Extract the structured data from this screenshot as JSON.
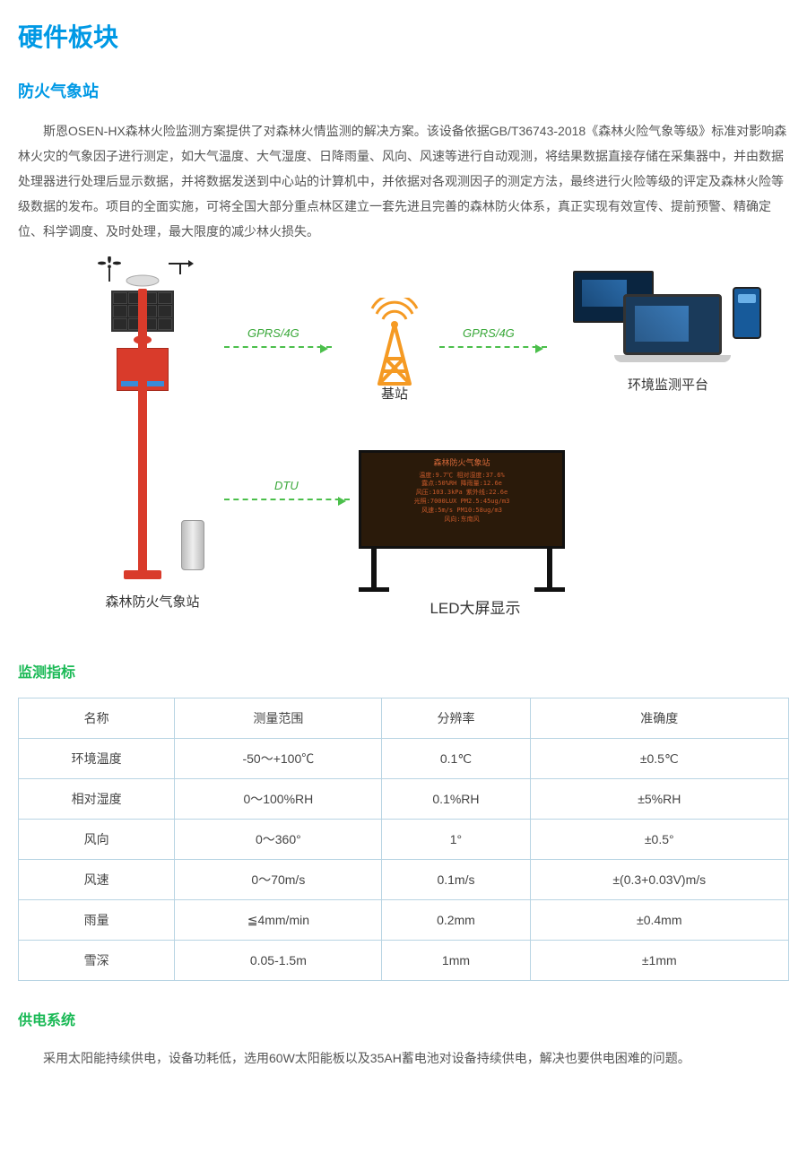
{
  "colors": {
    "primaryBlue": "#0099e5",
    "accentGreen": "#19b955",
    "arrowGreen": "#4bbf4b",
    "towerOrange": "#f59a23",
    "stationRed": "#d93b2b",
    "tableBorder": "#b8d4e3",
    "text": "#555555"
  },
  "title": "硬件板块",
  "section1": {
    "heading": "防火气象站"
  },
  "intro": "斯恩OSEN-HX森林火险监测方案提供了对森林火情监测的解决方案。该设备依据GB/T36743-2018《森林火险气象等级》标准对影响森林火灾的气象因子进行测定，如大气温度、大气湿度、日降雨量、风向、风速等进行自动观测，将结果数据直接存储在采集器中，并由数据处理器进行处理后显示数据，并将数据发送到中心站的计算机中，并依据对各观测因子的测定方法，最终进行火险等级的评定及森林火险等级数据的发布。项目的全面实施，可将全国大部分重点林区建立一套先进且完善的森林防火体系，真正实现有效宣传、提前预警、精确定位、科学调度、及时处理，最大限度的减少林火损失。",
  "diagram": {
    "stationLabel": "森林防火气象站",
    "baseStationLabel": "基站",
    "platformLabel": "环境监测平台",
    "ledLabel": "LED大屏显示",
    "link1": "GPRS/4G",
    "link2": "GPRS/4G",
    "link3": "DTU",
    "ledTitle": "森林防火气象站",
    "ledLines": [
      "温度:9.7℃      相对湿度:37.6%",
      "露点:50%RH     降雨量:12.6e",
      "风压:103.3kPa  紫外线:22.6e",
      "光照:7000LUX   PM2.5:45ug/m3",
      "风速:5m/s      PM10:58ug/m3",
      "风向:东南风"
    ]
  },
  "section2": {
    "heading": "监测指标"
  },
  "table": {
    "columns": [
      "名称",
      "测量范围",
      "分辨率",
      "准确度"
    ],
    "rows": [
      [
        "环境温度",
        "-50～+100℃",
        "0.1℃",
        "±0.5℃"
      ],
      [
        "相对湿度",
        "0～100%RH",
        "0.1%RH",
        "±5%RH"
      ],
      [
        "风向",
        "0～360°",
        "1°",
        "±0.5°"
      ],
      [
        "风速",
        "0～70m/s",
        "0.1m/s",
        "±(0.3+0.03V)m/s"
      ],
      [
        "雨量",
        "≦4mm/min",
        "0.2mm",
        "±0.4mm"
      ],
      [
        "雪深",
        "0.05-1.5m",
        "1mm",
        "±1mm"
      ]
    ]
  },
  "section3": {
    "heading": "供电系统"
  },
  "powerText": "采用太阳能持续供电，设备功耗低，选用60W太阳能板以及35AH蓄电池对设备持续供电，解决也要供电困难的问题。"
}
